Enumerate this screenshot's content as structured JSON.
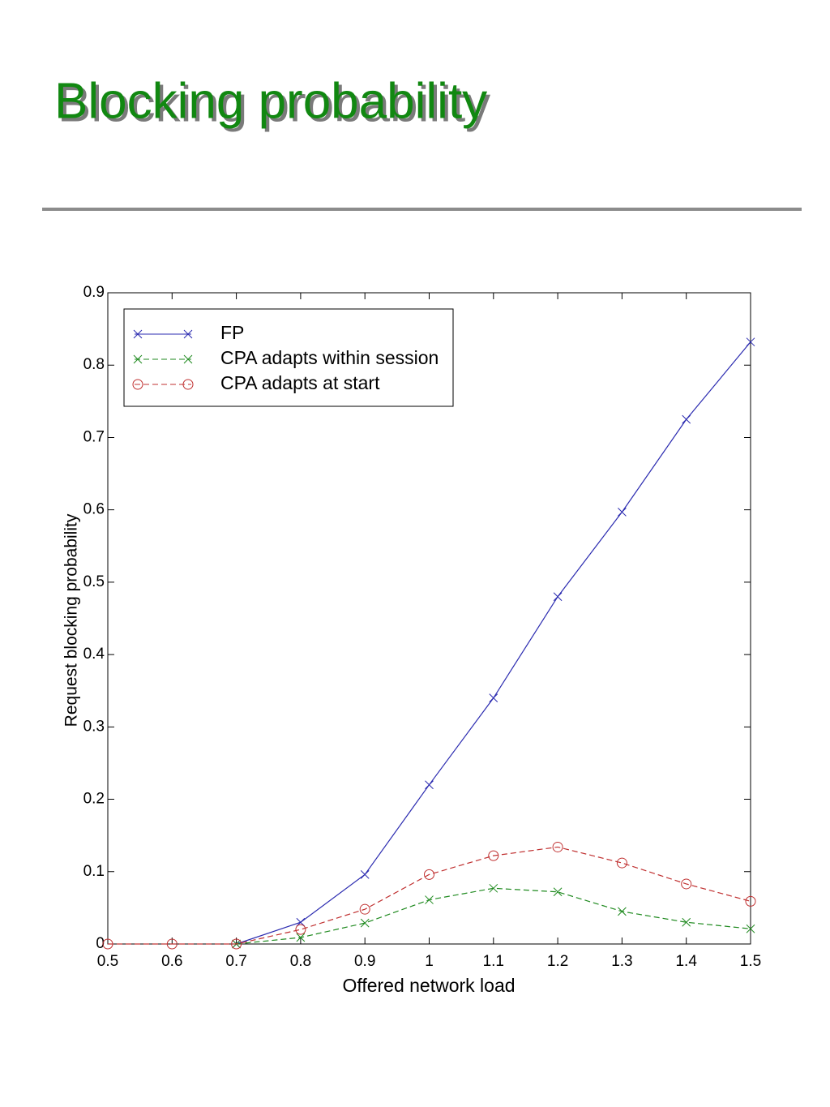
{
  "title": "Blocking probability",
  "chart_data": {
    "type": "line",
    "x": [
      0.5,
      0.6,
      0.7,
      0.8,
      0.9,
      1.0,
      1.1,
      1.2,
      1.3,
      1.4,
      1.5
    ],
    "series": [
      {
        "name": "FP",
        "color": "#2b2bb0",
        "dash": "solid",
        "marker": "x",
        "values": [
          null,
          null,
          0,
          0.03,
          0.096,
          0.22,
          0.34,
          0.48,
          0.597,
          0.725,
          0.832
        ]
      },
      {
        "name": "CPA adapts within session",
        "color": "#1f8a1f",
        "dash": "dashed",
        "marker": "x",
        "values": [
          null,
          null,
          0,
          0.009,
          0.029,
          0.061,
          0.077,
          0.072,
          0.045,
          0.03,
          0.021
        ]
      },
      {
        "name": "CPA adapts at start",
        "color": "#c03030",
        "dash": "dashed",
        "marker": "o",
        "values": [
          0,
          0,
          0,
          0.02,
          0.048,
          0.096,
          0.122,
          0.134,
          0.112,
          0.083,
          0.059
        ]
      }
    ],
    "xlabel": "Offered network load",
    "ylabel": "Request blocking probability",
    "xlim": [
      0.5,
      1.5
    ],
    "ylim": [
      0,
      0.9
    ],
    "xticks": [
      0.5,
      0.6,
      0.7,
      0.8,
      0.9,
      1,
      1.1,
      1.2,
      1.3,
      1.4,
      1.5
    ],
    "yticks": [
      0,
      0.1,
      0.2,
      0.3,
      0.4,
      0.5,
      0.6,
      0.7,
      0.8,
      0.9
    ],
    "legend": "upper-left"
  }
}
